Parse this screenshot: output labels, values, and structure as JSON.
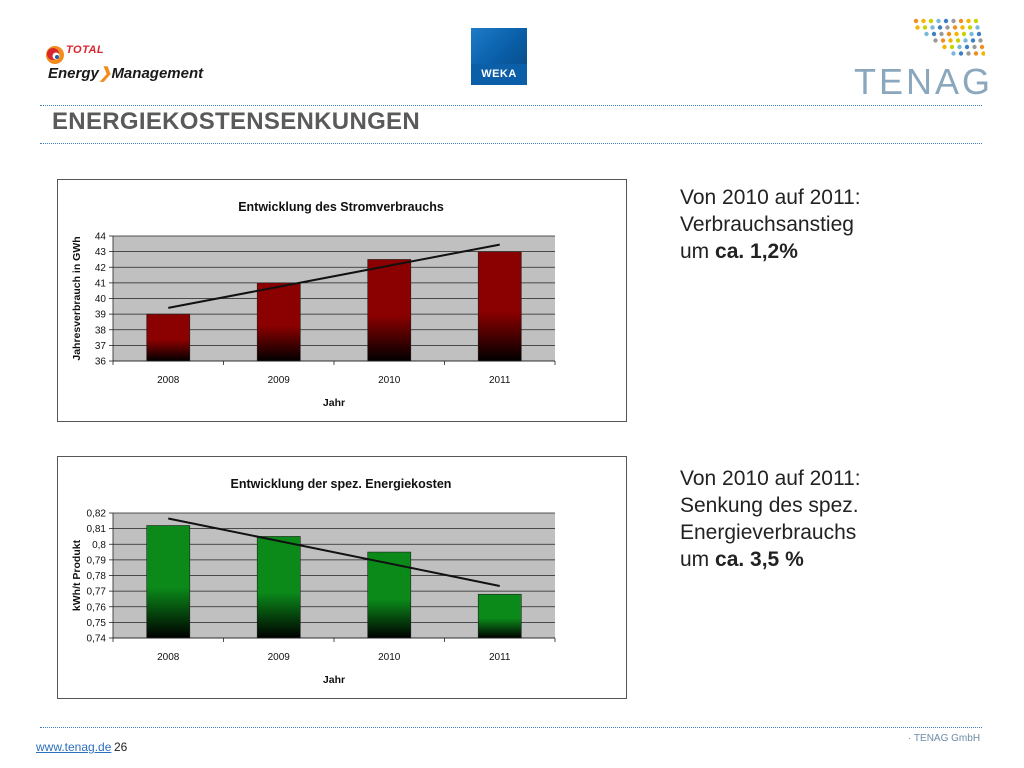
{
  "header": {
    "total_word": "TOTAL",
    "energy_management": "Energy",
    "energy_management_2": "Management",
    "weka": "WEKA",
    "tenag": "TENAG"
  },
  "slide": {
    "title": "ENERGIEKOSTENSENKUNGEN"
  },
  "notes": [
    {
      "line1": "Von 2010 auf 2011:",
      "line2": "Verbrauchsanstieg",
      "prefix": "um ",
      "bold": "ca. 1,2%"
    },
    {
      "line1": "Von 2010 auf 2011:",
      "line2": "Senkung des spez.",
      "line3": "Energieverbrauchs",
      "prefix": "um ",
      "bold": "ca. 3,5 %"
    }
  ],
  "footer": {
    "link": "www.tenag.de",
    "page": "26",
    "company": "· TENAG GmbH"
  },
  "colors": {
    "title": "#5a5a5a",
    "link": "#2d6fbf",
    "bar_red": "#8b0000",
    "bar_green": "#0b8a1a",
    "plot_bg": "#c0c0c0"
  },
  "chart_data": [
    {
      "type": "bar",
      "title": "Entwicklung des Stromverbrauchs",
      "xlabel": "Jahr",
      "ylabel": "Jahresverbrauch in GWh",
      "categories": [
        "2008",
        "2009",
        "2010",
        "2011"
      ],
      "values": [
        39,
        41,
        42.5,
        43
      ],
      "ylim": [
        36,
        44
      ],
      "yticks": [
        "36",
        "37",
        "38",
        "39",
        "40",
        "41",
        "42",
        "43",
        "44"
      ],
      "trendline": [
        39.4,
        40.75,
        42.1,
        43.45
      ],
      "grid": true,
      "legend": "none"
    },
    {
      "type": "bar",
      "title": "Entwicklung der spez. Energiekosten",
      "xlabel": "Jahr",
      "ylabel": "kWh/t Produkt",
      "categories": [
        "2008",
        "2009",
        "2010",
        "2011"
      ],
      "values": [
        0.812,
        0.805,
        0.795,
        0.768
      ],
      "ylim": [
        0.74,
        0.82
      ],
      "yticks": [
        "0,74",
        "0,75",
        "0,76",
        "0,77",
        "0,78",
        "0,79",
        "0,8",
        "0,81",
        "0,82"
      ],
      "trendline": [
        0.8165,
        0.8021,
        0.7877,
        0.7733
      ],
      "grid": true,
      "legend": "none"
    }
  ]
}
